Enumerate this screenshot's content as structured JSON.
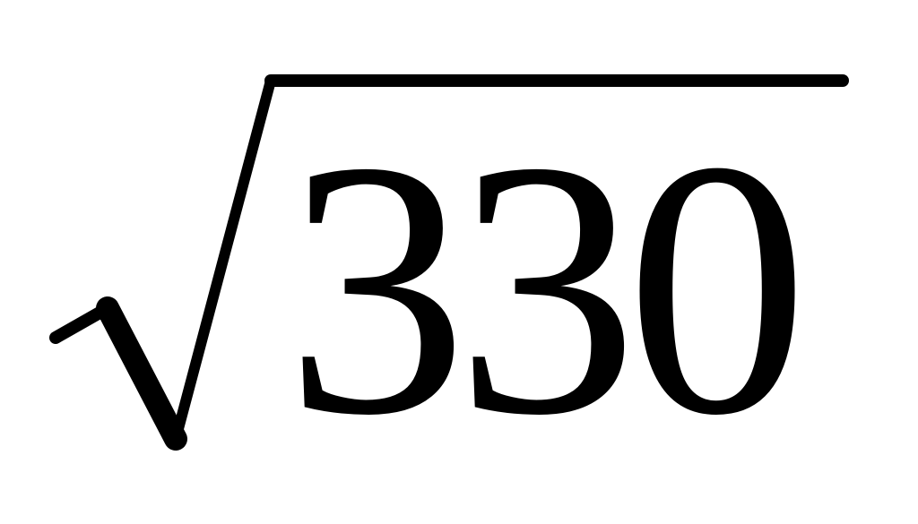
{
  "expression": {
    "operator": "square-root",
    "radicand": "330"
  },
  "colors": {
    "ink": "#000000",
    "background": "#ffffff"
  }
}
